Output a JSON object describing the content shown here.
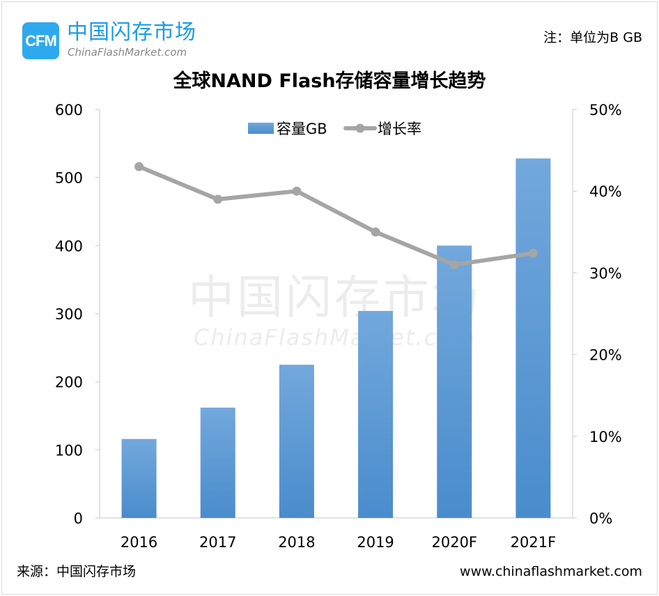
{
  "logo": {
    "mark": "CFM",
    "name_cn": "中国闪存市场",
    "name_en": "ChinaFlashMarket.com"
  },
  "note": "注：单位为B GB",
  "watermark": {
    "cn": "中国闪存市场",
    "en": "ChinaFlashMarket.com"
  },
  "source": "来源：中国闪存市场",
  "website": "www.chinaflashmarket.com",
  "chart_data": {
    "type": "bar+line",
    "title": "全球NAND Flash存储容量增长趋势",
    "categories": [
      "2016",
      "2017",
      "2018",
      "2019",
      "2020F",
      "2021F"
    ],
    "series": [
      {
        "name": "容量GB",
        "type": "bar",
        "axis": "left",
        "color": "#5b9bd5",
        "values": [
          116,
          162,
          225,
          304,
          400,
          528
        ]
      },
      {
        "name": "增长率",
        "type": "line",
        "axis": "right",
        "color": "#a5a5a5",
        "values": [
          43,
          39,
          40,
          35,
          31,
          32.4
        ]
      }
    ],
    "y_left": {
      "min": 0,
      "max": 600,
      "ticks": [
        "0",
        "100",
        "200",
        "300",
        "400",
        "500",
        "600"
      ]
    },
    "y_right": {
      "min": 0,
      "max": 50,
      "ticks": [
        "0%",
        "10%",
        "20%",
        "30%",
        "40%",
        "50%"
      ]
    },
    "grid": false,
    "legend": "top-center"
  }
}
